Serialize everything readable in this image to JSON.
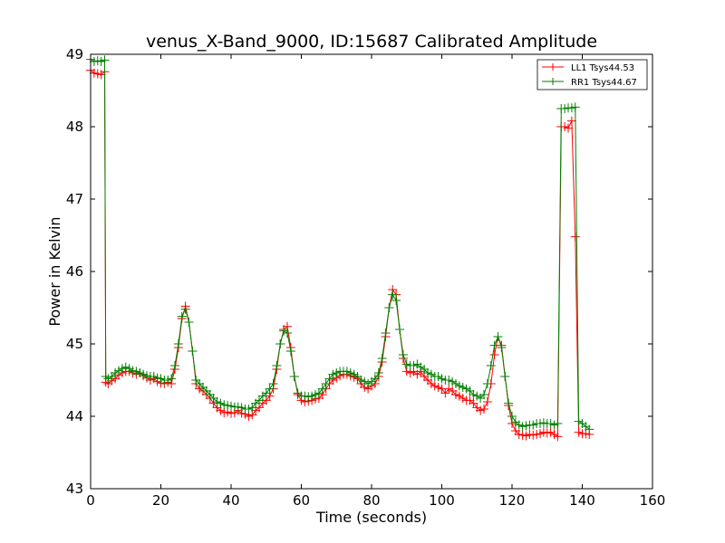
{
  "chart_data": {
    "type": "line",
    "title": "venus_X-Band_9000, ID:15687 Calibrated Amplitude",
    "xlabel": "Time (seconds)",
    "ylabel": "Power in Kelvin",
    "xlim": [
      0,
      160
    ],
    "ylim": [
      43,
      49
    ],
    "xticks": [
      0,
      20,
      40,
      60,
      80,
      100,
      120,
      140,
      160
    ],
    "yticks": [
      43,
      44,
      45,
      46,
      47,
      48,
      49
    ],
    "grid": false,
    "legend_position": "top-right",
    "marker": "+",
    "series": [
      {
        "name": "LL1 Tsys44.53",
        "color": "#ff0000",
        "x": [
          0,
          1,
          2,
          3,
          4,
          4.3,
          5,
          6,
          7,
          8,
          9,
          10,
          11,
          12,
          13,
          14,
          15,
          16,
          17,
          18,
          19,
          20,
          21,
          22,
          23,
          24,
          25,
          26,
          27,
          28,
          29,
          30,
          31,
          32,
          33,
          34,
          35,
          36,
          37,
          38,
          39,
          40,
          41,
          42,
          43,
          44,
          45,
          46,
          47,
          48,
          49,
          50,
          51,
          52,
          53,
          54,
          55,
          56,
          57,
          58,
          59,
          60,
          61,
          62,
          63,
          64,
          65,
          66,
          67,
          68,
          69,
          70,
          71,
          72,
          73,
          74,
          75,
          76,
          77,
          78,
          79,
          80,
          81,
          82,
          83,
          84,
          85,
          86,
          87,
          88,
          89,
          90,
          91,
          92,
          93,
          94,
          95,
          96,
          97,
          98,
          99,
          100,
          101,
          102,
          103,
          104,
          105,
          106,
          107,
          108,
          109,
          110,
          111,
          112,
          113,
          114,
          115,
          116,
          117,
          118,
          119,
          120,
          121,
          122,
          123,
          124,
          125,
          126,
          127,
          128,
          129,
          130,
          131,
          132,
          133,
          134,
          135,
          136,
          137,
          138,
          139,
          140,
          141,
          142
        ],
        "y": [
          48.78,
          48.74,
          48.73,
          48.72,
          48.76,
          44.47,
          44.45,
          44.49,
          44.52,
          44.57,
          44.6,
          44.62,
          44.62,
          44.6,
          44.58,
          44.6,
          44.56,
          44.53,
          44.5,
          44.52,
          44.48,
          44.46,
          44.45,
          44.47,
          44.45,
          44.65,
          44.95,
          45.35,
          45.52,
          45.3,
          44.9,
          44.45,
          44.38,
          44.35,
          44.3,
          44.25,
          44.18,
          44.12,
          44.08,
          44.05,
          44.06,
          44.04,
          44.05,
          44.08,
          44.04,
          44.03,
          44.0,
          44.02,
          44.08,
          44.12,
          44.18,
          44.22,
          44.28,
          44.38,
          44.65,
          45.0,
          45.2,
          45.24,
          44.95,
          44.55,
          44.3,
          44.22,
          44.2,
          44.21,
          44.22,
          44.24,
          44.25,
          44.3,
          44.38,
          44.45,
          44.5,
          44.53,
          44.56,
          44.58,
          44.58,
          44.56,
          44.54,
          44.52,
          44.45,
          44.4,
          44.38,
          44.42,
          44.45,
          44.55,
          44.75,
          45.1,
          45.5,
          45.75,
          45.68,
          45.2,
          44.8,
          44.62,
          44.6,
          44.62,
          44.58,
          44.62,
          44.55,
          44.5,
          44.45,
          44.42,
          44.4,
          44.38,
          44.32,
          44.38,
          44.35,
          44.3,
          44.28,
          44.25,
          44.22,
          44.22,
          44.18,
          44.12,
          44.08,
          44.1,
          44.2,
          44.45,
          44.85,
          45.1,
          44.98,
          44.55,
          44.15,
          43.9,
          43.8,
          43.75,
          43.74,
          43.73,
          43.75,
          43.74,
          43.75,
          43.76,
          43.78,
          43.77,
          43.78,
          43.75,
          43.72,
          48.0,
          48.0,
          47.98,
          48.08,
          46.48,
          43.78,
          43.76,
          43.76,
          43.75
        ]
      },
      {
        "name": "RR1 Tsys44.67",
        "color": "#008000",
        "x": [
          0,
          1,
          2,
          3,
          4,
          4.3,
          5,
          6,
          7,
          8,
          9,
          10,
          11,
          12,
          13,
          14,
          15,
          16,
          17,
          18,
          19,
          20,
          21,
          22,
          23,
          24,
          25,
          26,
          27,
          28,
          29,
          30,
          31,
          32,
          33,
          34,
          35,
          36,
          37,
          38,
          39,
          40,
          41,
          42,
          43,
          44,
          45,
          46,
          47,
          48,
          49,
          50,
          51,
          52,
          53,
          54,
          55,
          56,
          57,
          58,
          59,
          60,
          61,
          62,
          63,
          64,
          65,
          66,
          67,
          68,
          69,
          70,
          71,
          72,
          73,
          74,
          75,
          76,
          77,
          78,
          79,
          80,
          81,
          82,
          83,
          84,
          85,
          86,
          87,
          88,
          89,
          90,
          91,
          92,
          93,
          94,
          95,
          96,
          97,
          98,
          99,
          100,
          101,
          102,
          103,
          104,
          105,
          106,
          107,
          108,
          109,
          110,
          111,
          112,
          113,
          114,
          115,
          116,
          117,
          118,
          119,
          120,
          121,
          122,
          123,
          124,
          125,
          126,
          127,
          128,
          129,
          130,
          131,
          132,
          133,
          134,
          135,
          136,
          137,
          138,
          139,
          140,
          141,
          142
        ],
        "y": [
          48.93,
          48.9,
          48.91,
          48.9,
          48.92,
          44.55,
          44.52,
          44.55,
          44.6,
          44.63,
          44.66,
          44.68,
          44.66,
          44.63,
          44.62,
          44.6,
          44.58,
          44.56,
          44.55,
          44.55,
          44.53,
          44.52,
          44.5,
          44.5,
          44.52,
          44.7,
          45.0,
          45.38,
          45.48,
          45.3,
          44.9,
          44.5,
          44.45,
          44.4,
          44.35,
          44.3,
          44.25,
          44.2,
          44.18,
          44.16,
          44.15,
          44.14,
          44.13,
          44.13,
          44.12,
          44.1,
          44.1,
          44.12,
          44.18,
          44.22,
          44.28,
          44.32,
          44.38,
          44.45,
          44.7,
          45.0,
          45.18,
          45.15,
          44.9,
          44.55,
          44.32,
          44.28,
          44.28,
          44.27,
          44.28,
          44.3,
          44.32,
          44.38,
          44.45,
          44.52,
          44.58,
          44.6,
          44.62,
          44.62,
          44.62,
          44.6,
          44.58,
          44.55,
          44.5,
          44.48,
          44.45,
          44.48,
          44.52,
          44.6,
          44.8,
          45.15,
          45.5,
          45.68,
          45.6,
          45.2,
          44.85,
          44.72,
          44.7,
          44.7,
          44.72,
          44.68,
          44.65,
          44.6,
          44.58,
          44.55,
          44.55,
          44.52,
          44.5,
          44.5,
          44.48,
          44.45,
          44.42,
          44.4,
          44.38,
          44.35,
          44.3,
          44.28,
          44.25,
          44.3,
          44.45,
          44.7,
          44.98,
          45.1,
          44.95,
          44.55,
          44.18,
          44.0,
          43.92,
          43.88,
          43.86,
          43.87,
          43.88,
          43.88,
          43.9,
          43.9,
          43.91,
          43.9,
          43.9,
          43.88,
          43.9,
          48.25,
          48.25,
          48.26,
          48.26,
          48.27,
          43.93,
          43.9,
          43.86,
          43.82
        ]
      }
    ]
  }
}
